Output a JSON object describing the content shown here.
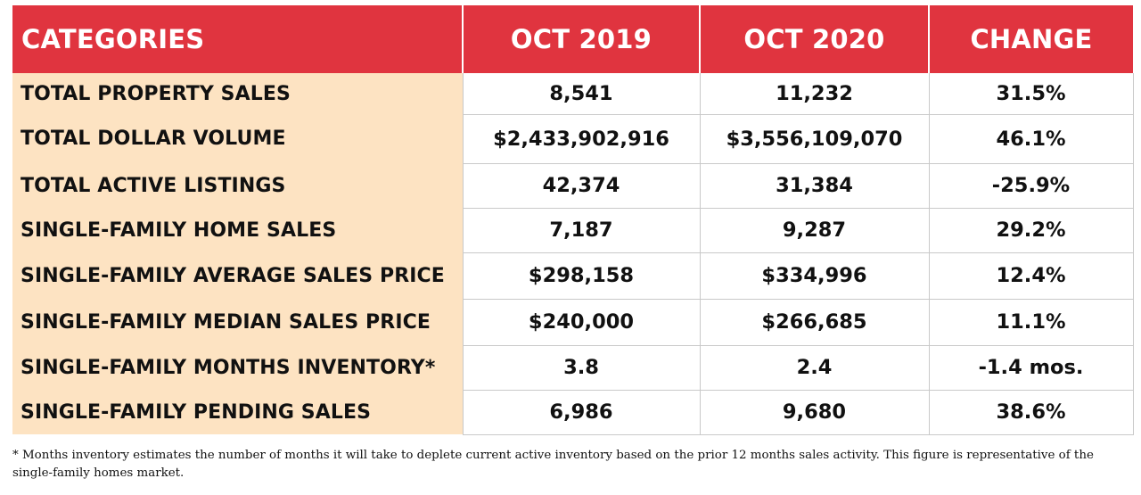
{
  "table": {
    "headers": [
      "CATEGORIES",
      "OCT 2019",
      "OCT 2020",
      "CHANGE"
    ],
    "rows": [
      {
        "category": "TOTAL PROPERTY SALES",
        "oct2019": "8,541",
        "oct2020": "11,232",
        "change": "31.5%"
      },
      {
        "category": "TOTAL DOLLAR VOLUME",
        "oct2019": "$2,433,902,916",
        "oct2020": "$3,556,109,070",
        "change": "46.1%"
      },
      {
        "category": "TOTAL ACTIVE LISTINGS",
        "oct2019": "42,374",
        "oct2020": "31,384",
        "change": "-25.9%"
      },
      {
        "category": "SINGLE-FAMILY HOME SALES",
        "oct2019": "7,187",
        "oct2020": "9,287",
        "change": "29.2%"
      },
      {
        "category": "SINGLE-FAMILY AVERAGE SALES PRICE",
        "oct2019": "$298,158",
        "oct2020": "$334,996",
        "change": "12.4%"
      },
      {
        "category": "SINGLE-FAMILY MEDIAN SALES PRICE",
        "oct2019": "$240,000",
        "oct2020": "$266,685",
        "change": "11.1%"
      },
      {
        "category": "SINGLE-FAMILY MONTHS INVENTORY*",
        "oct2019": "3.8",
        "oct2020": "2.4",
        "change": "-1.4 mos."
      },
      {
        "category": "SINGLE-FAMILY PENDING SALES",
        "oct2019": "6,986",
        "oct2020": "9,680",
        "change": "38.6%"
      }
    ]
  },
  "footnote": "* Months inventory estimates the number of months it will take to deplete current active inventory based on the prior 12 months sales activity. This figure is representative of the single-family homes market.",
  "colors": {
    "header_background": "#e0343f",
    "header_text": "#ffffff",
    "category_background": "#fde3c2",
    "grid_line": "#c9c9c9"
  }
}
